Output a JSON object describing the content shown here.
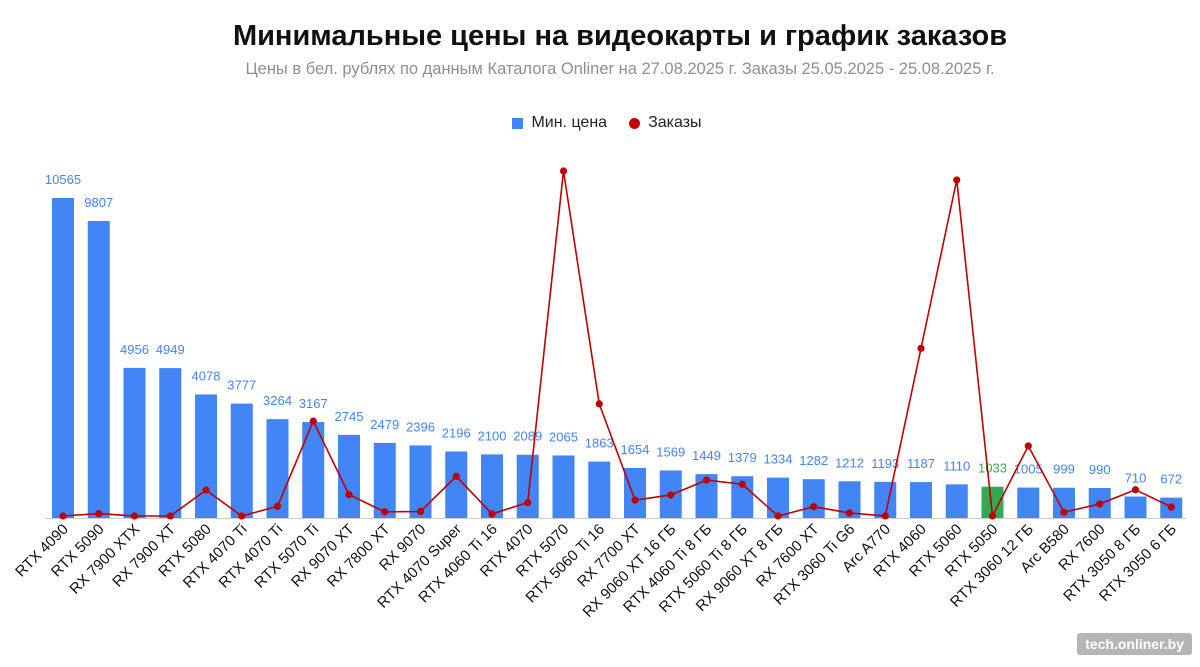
{
  "chart_data": {
    "type": "bar",
    "title": "Минимальные цены на видеокарты и график заказов",
    "subtitle": "Цены в бел. рублях по данным Каталога Onliner на 27.08.2025 г. Заказы 25.05.2025 - 25.08.2025 г.",
    "legend": {
      "placement": "top-center",
      "bar_label": "Мин. цена",
      "line_label": "Заказы"
    },
    "categories": [
      "RTX 4090",
      "RTX 5090",
      "RX 7900 XTX",
      "RX 7900 XT",
      "RTX 5080",
      "RTX 4070 Ti",
      "RTX 4070 Ti",
      "RTX 5070 Ti",
      "RX 9070 XT",
      "RX 7800 XT",
      "RX 9070",
      "RTX 4070 Super",
      "RTX 4060 Ti 16",
      "RTX 4070",
      "RTX 5070",
      "RTX 5060 Ti 16",
      "RX 7700 XT",
      "RX 9060 XT 16 ГБ",
      "RTX 4060 Ti 8 ГБ",
      "RTX 5060 Ti 8 ГБ",
      "RX 9060 XT 8 ГБ",
      "RX 7600 XT",
      "RTX 3060 Ti G6",
      "Arc A770",
      "RTX 4060",
      "RTX 5060",
      "RTX 5050",
      "RTX 3060 12 ГБ",
      "Arc B580",
      "RX 7600",
      "RTX 3050 8 ГБ",
      "RTX 3050 6 ГБ"
    ],
    "series": [
      {
        "name": "Мин. цена",
        "type": "bar",
        "color": "#4285f4",
        "highlight_index": 26,
        "highlight_color": "#34a853",
        "values": [
          10565,
          9807,
          4956,
          4949,
          4078,
          3777,
          3264,
          3167,
          2745,
          2479,
          2396,
          2196,
          2100,
          2089,
          2065,
          1863,
          1654,
          1569,
          1449,
          1379,
          1334,
          1282,
          1212,
          1193,
          1187,
          1110,
          1033,
          1005,
          999,
          990,
          710,
          672
        ],
        "labels": [
          "10565",
          "9807",
          "4956",
          "4949",
          "4078",
          "3777",
          "3264",
          "3167",
          "2745",
          "2479",
          "2396",
          "2196",
          "2100",
          "2089",
          "2065",
          "1863",
          "1654",
          "1569",
          "1449",
          "1379",
          "1334",
          "1282",
          "1212",
          "1193",
          "1187",
          "1110",
          "1033",
          "1005",
          "999",
          "990",
          "710",
          "672"
        ]
      },
      {
        "name": "Заказы",
        "type": "line",
        "color": "#c00000",
        "values": [
          0,
          0.7,
          0,
          0,
          7.5,
          0,
          2.8,
          27.5,
          6.2,
          1.2,
          1.3,
          11.5,
          0.6,
          3.9,
          100,
          32.5,
          4.6,
          6.1,
          10.4,
          9.2,
          0,
          2.7,
          0.9,
          0,
          48.6,
          97.4,
          0,
          20.3,
          1.1,
          3.5,
          7.6,
          2.6
        ]
      }
    ],
    "ylim": [
      0,
      11000
    ],
    "y2lim": [
      0,
      100
    ],
    "grid": false,
    "xlabel": "",
    "ylabel": ""
  },
  "watermark": "tech.onliner.by"
}
